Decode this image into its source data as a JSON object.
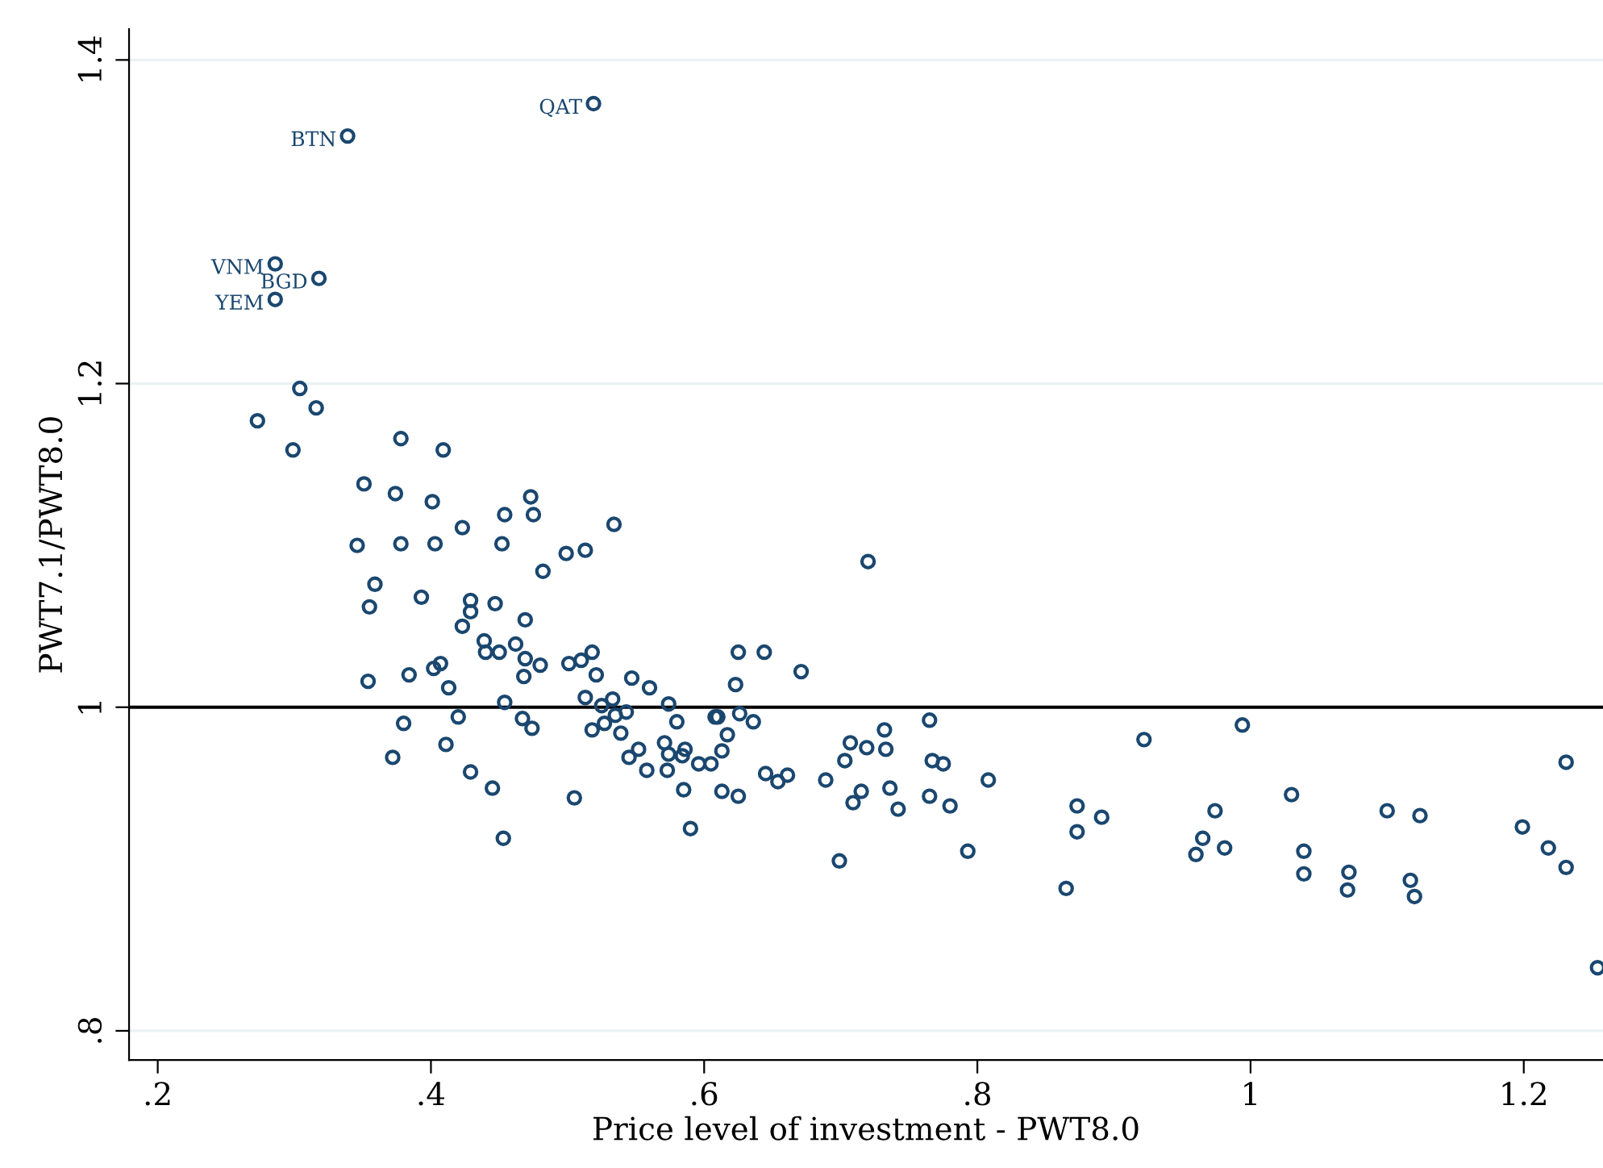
{
  "chart_data": {
    "type": "scatter",
    "xlabel": "Price level of investment - PWT8.0",
    "ylabel": "PWT7.1/PWT8.0",
    "xlim": [
      0.179,
      1.258
    ],
    "ylim": [
      0.782,
      1.419
    ],
    "xticks": [
      {
        "value": 0.2,
        "label": ".2"
      },
      {
        "value": 0.4,
        "label": ".4"
      },
      {
        "value": 0.6,
        "label": ".6"
      },
      {
        "value": 0.8,
        "label": ".8"
      },
      1,
      {
        "value": 1.2,
        "label": "1.2"
      }
    ],
    "yticks": [
      {
        "value": 0.8,
        "label": ".8"
      },
      1,
      {
        "value": 1.2,
        "label": "1.2"
      },
      {
        "value": 1.4,
        "label": "1.4"
      }
    ],
    "grid": "y",
    "marker": "circle",
    "legend": false,
    "ref_lines": [
      {
        "axis": "y",
        "value": 1,
        "color": "#000000",
        "line_style": "solid"
      }
    ],
    "annotations": [
      {
        "text": "QAT",
        "x": 0.519,
        "y": 1.373
      },
      {
        "text": "BTN",
        "x": 0.339,
        "y": 1.353
      },
      {
        "text": "VNM",
        "x": 0.286,
        "y": 1.274
      },
      {
        "text": "BGD",
        "x": 0.318,
        "y": 1.265
      },
      {
        "text": "YEM",
        "x": 0.286,
        "y": 1.252
      }
    ],
    "series": [
      {
        "color": "#1a476f",
        "x": [
          0.519,
          0.339,
          0.286,
          0.318,
          0.286,
          0.273,
          0.316,
          0.299,
          0.378,
          0.409,
          0.351,
          0.374,
          0.401,
          0.473,
          0.454,
          0.475,
          0.423,
          0.346,
          0.378,
          0.403,
          0.452,
          0.482,
          0.359,
          0.355,
          0.393,
          0.429,
          0.429,
          0.447,
          0.423,
          0.469,
          0.439,
          0.44,
          0.45,
          0.462,
          0.469,
          0.48,
          0.468,
          0.354,
          0.384,
          0.402,
          0.407,
          0.413,
          0.454,
          0.38,
          0.42,
          0.467,
          0.474,
          0.411,
          0.372,
          0.429,
          0.445,
          0.453,
          0.534,
          0.499,
          0.513,
          0.501,
          0.51,
          0.518,
          0.521,
          0.547,
          0.56,
          0.513,
          0.525,
          0.533,
          0.535,
          0.543,
          0.527,
          0.518,
          0.539,
          0.574,
          0.58,
          0.571,
          0.552,
          0.545,
          0.558,
          0.573,
          0.574,
          0.584,
          0.586,
          0.596,
          0.605,
          0.608,
          0.61,
          0.617,
          0.613,
          0.626,
          0.636,
          0.623,
          0.625,
          0.644,
          0.671,
          0.585,
          0.613,
          0.625,
          0.645,
          0.654,
          0.661,
          0.689,
          0.703,
          0.707,
          0.505,
          0.59,
          0.709,
          0.765,
          0.732,
          0.719,
          0.733,
          0.767,
          0.775,
          0.715,
          0.736,
          0.765,
          0.742,
          0.78,
          0.808,
          0.793,
          0.873,
          0.891,
          0.873,
          0.922,
          0.699,
          0.994,
          1.03,
          0.974,
          0.965,
          0.96,
          0.981,
          1.039,
          1.039,
          1.072,
          1.071,
          1.1,
          1.124,
          1.117,
          1.12,
          1.199,
          1.218,
          1.231,
          1.231,
          1.254,
          0.865,
          0.72,
          0.304
        ],
        "values": [
          1.373,
          1.353,
          1.274,
          1.265,
          1.252,
          1.177,
          1.185,
          1.159,
          1.166,
          1.159,
          1.138,
          1.132,
          1.127,
          1.13,
          1.119,
          1.119,
          1.111,
          1.1,
          1.101,
          1.101,
          1.101,
          1.084,
          1.076,
          1.062,
          1.068,
          1.066,
          1.059,
          1.064,
          1.05,
          1.054,
          1.041,
          1.034,
          1.034,
          1.039,
          1.03,
          1.026,
          1.019,
          1.016,
          1.02,
          1.024,
          1.027,
          1.012,
          1.003,
          0.99,
          0.994,
          0.993,
          0.987,
          0.977,
          0.969,
          0.96,
          0.95,
          0.919,
          1.113,
          1.095,
          1.097,
          1.027,
          1.029,
          1.034,
          1.02,
          1.018,
          1.012,
          1.006,
          1.001,
          1.005,
          0.995,
          0.997,
          0.99,
          0.986,
          0.984,
          1.002,
          0.991,
          0.978,
          0.974,
          0.969,
          0.961,
          0.961,
          0.971,
          0.97,
          0.974,
          0.965,
          0.965,
          0.994,
          0.994,
          0.983,
          0.973,
          0.996,
          0.991,
          1.014,
          1.034,
          1.034,
          1.022,
          0.949,
          0.948,
          0.945,
          0.959,
          0.954,
          0.958,
          0.955,
          0.967,
          0.978,
          0.944,
          0.925,
          0.941,
          0.992,
          0.986,
          0.975,
          0.974,
          0.967,
          0.965,
          0.948,
          0.95,
          0.945,
          0.937,
          0.939,
          0.955,
          0.911,
          0.939,
          0.932,
          0.923,
          0.98,
          0.905,
          0.989,
          0.946,
          0.936,
          0.919,
          0.909,
          0.913,
          0.911,
          0.897,
          0.898,
          0.887,
          0.936,
          0.933,
          0.893,
          0.883,
          0.926,
          0.913,
          0.901,
          0.966,
          0.839,
          0.888,
          1.09,
          1.197
        ]
      }
    ]
  }
}
